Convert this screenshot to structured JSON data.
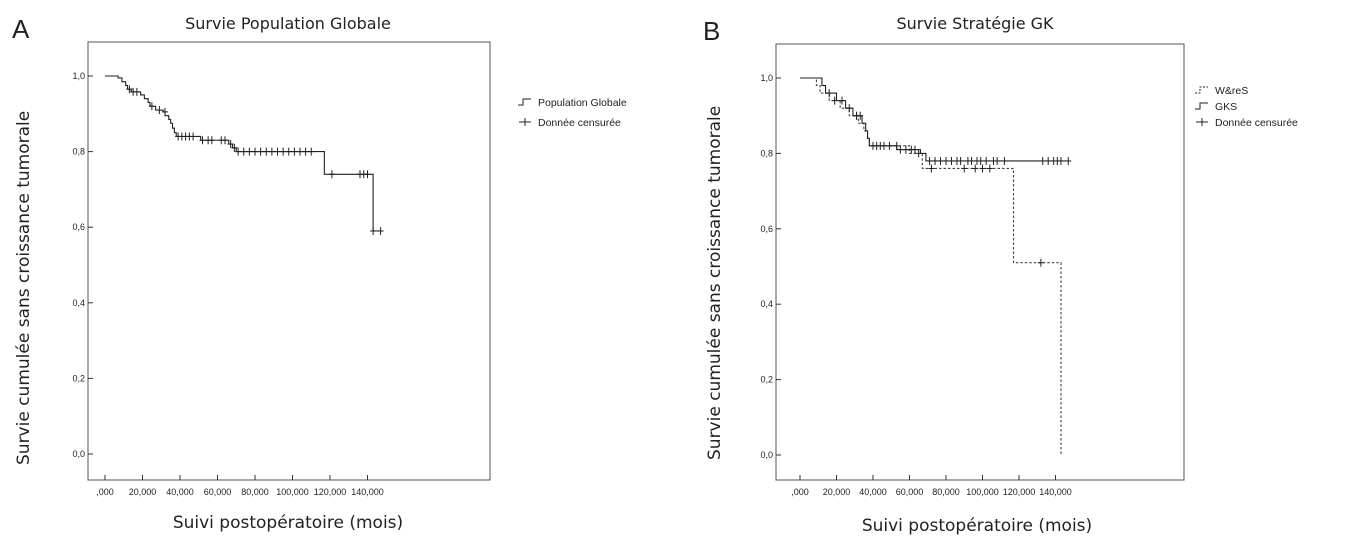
{
  "chart_data": [
    {
      "type": "line",
      "panel_label": "A",
      "title": "Survie Population Globale",
      "xlabel": "Suivi postopératoire (mois)",
      "ylabel": "Survie cumulée sans croissance tumorale",
      "xlim": [
        0,
        150
      ],
      "ylim": [
        0,
        1.02
      ],
      "xticks": [
        0,
        20,
        40,
        60,
        80,
        100,
        120,
        140
      ],
      "xtick_labels": [
        ",000",
        "20,000",
        "40,000",
        "60,000",
        "80,000",
        "100,000",
        "120,000",
        "140,000"
      ],
      "yticks": [
        0,
        0.2,
        0.4,
        0.6,
        0.8,
        1.0
      ],
      "ytick_labels": [
        "0,0",
        "0,2",
        "0,4",
        "0,6",
        "0,8",
        "1,0"
      ],
      "legend": [
        {
          "label": "Population Globale",
          "style": "solid"
        },
        {
          "label": "Donnée censurée",
          "style": "censor"
        }
      ],
      "series": [
        {
          "name": "Population Globale",
          "style": "solid",
          "steps": [
            [
              0,
              1.0
            ],
            [
              7,
              0.995
            ],
            [
              9,
              0.985
            ],
            [
              11,
              0.975
            ],
            [
              12,
              0.965
            ],
            [
              14,
              0.958
            ],
            [
              19,
              0.95
            ],
            [
              21,
              0.94
            ],
            [
              23,
              0.93
            ],
            [
              24,
              0.92
            ],
            [
              27,
              0.91
            ],
            [
              31,
              0.905
            ],
            [
              32,
              0.895
            ],
            [
              34,
              0.885
            ],
            [
              35,
              0.875
            ],
            [
              36,
              0.862
            ],
            [
              37,
              0.85
            ],
            [
              38,
              0.84
            ],
            [
              51,
              0.83
            ],
            [
              66,
              0.82
            ],
            [
              68,
              0.81
            ],
            [
              70,
              0.8
            ],
            [
              117,
              0.74
            ],
            [
              143,
              0.59
            ],
            [
              147,
              0.59
            ]
          ],
          "censored": [
            [
              13,
              0.965
            ],
            [
              15,
              0.958
            ],
            [
              17,
              0.958
            ],
            [
              25,
              0.92
            ],
            [
              29,
              0.91
            ],
            [
              32,
              0.905
            ],
            [
              39,
              0.84
            ],
            [
              41,
              0.84
            ],
            [
              43,
              0.84
            ],
            [
              45,
              0.84
            ],
            [
              47,
              0.84
            ],
            [
              52,
              0.83
            ],
            [
              55,
              0.83
            ],
            [
              57,
              0.83
            ],
            [
              62,
              0.83
            ],
            [
              64,
              0.83
            ],
            [
              67,
              0.82
            ],
            [
              69,
              0.81
            ],
            [
              71,
              0.8
            ],
            [
              74,
              0.8
            ],
            [
              77,
              0.8
            ],
            [
              80,
              0.8
            ],
            [
              83,
              0.8
            ],
            [
              86,
              0.8
            ],
            [
              89,
              0.8
            ],
            [
              92,
              0.8
            ],
            [
              95,
              0.8
            ],
            [
              98,
              0.8
            ],
            [
              101,
              0.8
            ],
            [
              104,
              0.8
            ],
            [
              107,
              0.8
            ],
            [
              110,
              0.8
            ],
            [
              121,
              0.74
            ],
            [
              136,
              0.74
            ],
            [
              138,
              0.74
            ],
            [
              140,
              0.74
            ],
            [
              143,
              0.59
            ],
            [
              147,
              0.59
            ]
          ]
        }
      ]
    },
    {
      "type": "line",
      "panel_label": "B",
      "title": "Survie Stratégie GK",
      "xlabel": "Suivi postopératoire (mois)",
      "ylabel": "Survie cumulée sans croissance tumorale",
      "xlim": [
        0,
        150
      ],
      "ylim": [
        0,
        1.02
      ],
      "xticks": [
        0,
        20,
        40,
        60,
        80,
        100,
        120,
        140
      ],
      "xtick_labels": [
        ",000",
        "20,000",
        "40,000",
        "60,000",
        "80,000",
        "100,000",
        "120,000",
        "140,000"
      ],
      "yticks": [
        0,
        0.2,
        0.4,
        0.6,
        0.8,
        1.0
      ],
      "ytick_labels": [
        "0,0",
        "0,2",
        "0,4",
        "0,6",
        "0,8",
        "1,0"
      ],
      "legend": [
        {
          "label": "W&reS",
          "style": "dashed"
        },
        {
          "label": "GKS",
          "style": "solid"
        },
        {
          "label": "Donnée censurée",
          "style": "censor"
        }
      ],
      "series": [
        {
          "name": "W&reS",
          "style": "dashed",
          "steps": [
            [
              0,
              1.0
            ],
            [
              9,
              0.98
            ],
            [
              11,
              0.96
            ],
            [
              16,
              0.94
            ],
            [
              22,
              0.92
            ],
            [
              27,
              0.9
            ],
            [
              32,
              0.88
            ],
            [
              35,
              0.86
            ],
            [
              37,
              0.84
            ],
            [
              38,
              0.82
            ],
            [
              60,
              0.8
            ],
            [
              67,
              0.76
            ],
            [
              117,
              0.51
            ],
            [
              143,
              0.0
            ]
          ],
          "censored": [
            [
              19,
              0.94
            ],
            [
              31,
              0.9
            ],
            [
              44,
              0.82
            ],
            [
              53,
              0.82
            ],
            [
              65,
              0.8
            ],
            [
              72,
              0.76
            ],
            [
              90,
              0.76
            ],
            [
              96,
              0.76
            ],
            [
              100,
              0.76
            ],
            [
              104,
              0.76
            ],
            [
              132,
              0.51
            ]
          ]
        },
        {
          "name": "GKS",
          "style": "solid",
          "steps": [
            [
              0,
              1.0
            ],
            [
              12,
              0.98
            ],
            [
              14,
              0.96
            ],
            [
              20,
              0.94
            ],
            [
              25,
              0.92
            ],
            [
              29,
              0.9
            ],
            [
              34,
              0.88
            ],
            [
              36,
              0.86
            ],
            [
              37,
              0.84
            ],
            [
              38,
              0.82
            ],
            [
              53,
              0.81
            ],
            [
              66,
              0.8
            ],
            [
              69,
              0.78
            ],
            [
              147,
              0.78
            ]
          ],
          "censored": [
            [
              16,
              0.96
            ],
            [
              23,
              0.94
            ],
            [
              27,
              0.92
            ],
            [
              31,
              0.9
            ],
            [
              33,
              0.9
            ],
            [
              40,
              0.82
            ],
            [
              42,
              0.82
            ],
            [
              46,
              0.82
            ],
            [
              49,
              0.82
            ],
            [
              55,
              0.81
            ],
            [
              58,
              0.81
            ],
            [
              61,
              0.81
            ],
            [
              63,
              0.81
            ],
            [
              71,
              0.78
            ],
            [
              74,
              0.78
            ],
            [
              77,
              0.78
            ],
            [
              80,
              0.78
            ],
            [
              83,
              0.78
            ],
            [
              86,
              0.78
            ],
            [
              88,
              0.78
            ],
            [
              92,
              0.78
            ],
            [
              94,
              0.78
            ],
            [
              97,
              0.78
            ],
            [
              99,
              0.78
            ],
            [
              102,
              0.78
            ],
            [
              106,
              0.78
            ],
            [
              108,
              0.78
            ],
            [
              112,
              0.78
            ],
            [
              133,
              0.78
            ],
            [
              136,
              0.78
            ],
            [
              139,
              0.78
            ],
            [
              141,
              0.78
            ],
            [
              143,
              0.78
            ],
            [
              147,
              0.78
            ]
          ]
        }
      ]
    }
  ]
}
